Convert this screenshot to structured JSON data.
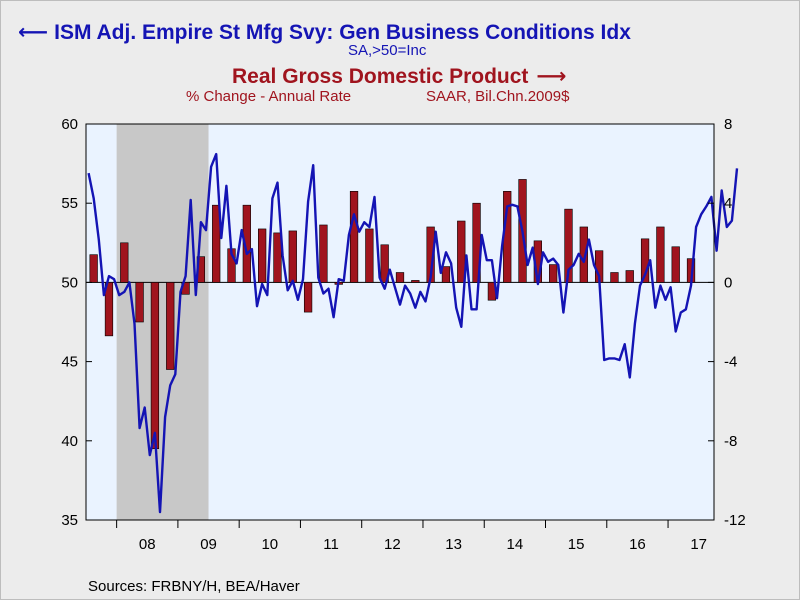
{
  "titles": {
    "series1_title": "ISM Adj. Empire St Mfg Svy: Gen Business Conditions Idx",
    "series1_arrow": "⟵",
    "series1_sub": "SA,>50=Inc",
    "series2_title": "Real Gross Domestic Product",
    "series2_arrow": "⟶",
    "series2_sub_left": "% Change - Annual Rate",
    "series2_sub_right": "SAAR, Bil.Chn.2009$"
  },
  "source": "Sources:  FRBNY/H, BEA/Haver",
  "colors": {
    "line": "#1414b4",
    "bar": "#a0141e",
    "plot_bg": "#eaf3ff",
    "recession": "#c8c8c8",
    "page_bg": "#ececec"
  },
  "chart_data": {
    "type": "bar+line",
    "x_tick_labels": [
      "08",
      "09",
      "10",
      "11",
      "12",
      "13",
      "14",
      "15",
      "16",
      "17"
    ],
    "x_range": [
      2007.5,
      2017.75
    ],
    "left_axis": {
      "ylim": [
        35,
        60
      ],
      "ticks": [
        35,
        40,
        45,
        50,
        55,
        60
      ]
    },
    "right_axis": {
      "ylim": [
        -12,
        8
      ],
      "ticks": [
        -12,
        -8,
        -4,
        0,
        4,
        8
      ]
    },
    "recession_shading": [
      2008.0,
      2009.5
    ],
    "series": [
      {
        "name": "Real Gross Domestic Product",
        "kind": "bar",
        "axis": "right",
        "x": [
          2007.5,
          2007.75,
          2008.0,
          2008.25,
          2008.5,
          2008.75,
          2009.0,
          2009.25,
          2009.5,
          2009.75,
          2010.0,
          2010.25,
          2010.5,
          2010.75,
          2011.0,
          2011.25,
          2011.5,
          2011.75,
          2012.0,
          2012.25,
          2012.5,
          2012.75,
          2013.0,
          2013.25,
          2013.5,
          2013.75,
          2014.0,
          2014.25,
          2014.5,
          2014.75,
          2015.0,
          2015.25,
          2015.5,
          2015.75,
          2016.0,
          2016.25,
          2016.5,
          2016.75,
          2017.0,
          2017.25
        ],
        "values": [
          1.4,
          -2.7,
          2.0,
          -2.0,
          -8.4,
          -4.4,
          -0.6,
          1.3,
          3.9,
          1.7,
          3.9,
          2.7,
          2.5,
          2.6,
          -1.5,
          2.9,
          -0.1,
          4.6,
          2.7,
          1.9,
          0.5,
          0.1,
          2.8,
          0.8,
          3.1,
          4.0,
          -0.9,
          4.6,
          5.2,
          2.1,
          0.9,
          3.7,
          2.8,
          1.6,
          0.5,
          0.6,
          2.2,
          2.8,
          1.8,
          1.2
        ]
      },
      {
        "name": "ISM Adj. Empire St Mfg Svy: Gen Business Conditions Idx",
        "kind": "line",
        "axis": "left",
        "x_start": 2007.5,
        "x_step": 0.0833333,
        "values": [
          56.9,
          55.3,
          52.7,
          49.2,
          50.4,
          50.2,
          49.2,
          49.4,
          50.0,
          47.4,
          40.8,
          42.1,
          39.1,
          40.5,
          35.5,
          41.5,
          43.5,
          44.2,
          49.4,
          50.4,
          55.2,
          49.2,
          53.8,
          53.3,
          57.3,
          58.1,
          52.8,
          56.1,
          51.8,
          51.2,
          53.3,
          51.8,
          52.1,
          48.5,
          49.9,
          49.2,
          55.3,
          56.3,
          51.7,
          49.5,
          50.1,
          48.9,
          50.2,
          55.1,
          57.4,
          50.3,
          49.3,
          49.6,
          47.8,
          50.2,
          50.1,
          53.0,
          54.3,
          53.2,
          53.8,
          53.5,
          55.4,
          50.3,
          49.6,
          50.8,
          49.7,
          48.6,
          49.8,
          49.3,
          48.4,
          49.4,
          48.8,
          50.3,
          53.2,
          50.6,
          51.9,
          51.2,
          48.4,
          47.2,
          51.7,
          48.3,
          48.3,
          53.0,
          51.4,
          51.4,
          49.0,
          52.3,
          54.8,
          54.9,
          54.8,
          53.2,
          51.1,
          52.2,
          49.9,
          51.9,
          51.3,
          51.5,
          51.1,
          48.1,
          50.8,
          51.1,
          51.8,
          51.3,
          52.7,
          51.1,
          50.4,
          45.1,
          45.2,
          45.2,
          45.1,
          46.1,
          44.0,
          47.4,
          49.8,
          50.5,
          51.4,
          48.4,
          49.8,
          48.9,
          49.7,
          46.9,
          48.1,
          48.3,
          49.8,
          53.5,
          54.3,
          54.8,
          55.4,
          52.0,
          55.8,
          53.5,
          53.9,
          57.2
        ]
      }
    ]
  }
}
